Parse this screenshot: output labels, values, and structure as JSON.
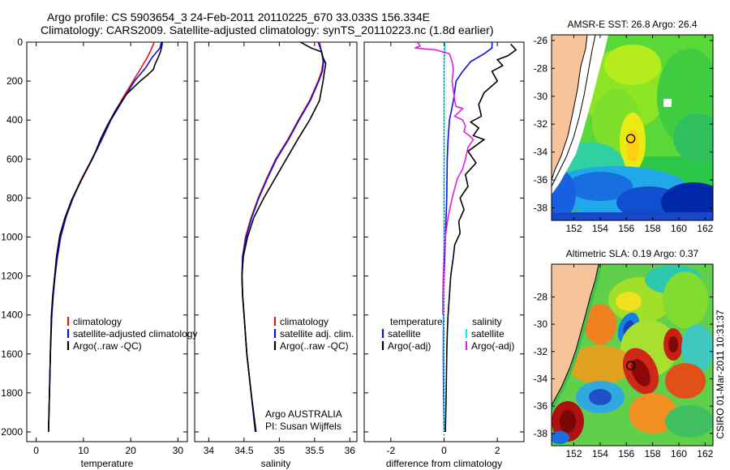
{
  "title": {
    "line1": "Argo profile: CS 5903654_3 24-Feb-2011 20110225_670 33.033S 156.334E",
    "line2": "Climatology: CARS2009. Satellite-adjusted climatology: synTS_20110223.nc (1.8d earlier)"
  },
  "colors": {
    "clim": "#e01818",
    "sat": "#1010d8",
    "argo": "#000000",
    "sal_sat": "#20e0e8",
    "sal_argo": "#e020e0"
  },
  "chart_data": [
    {
      "type": "line",
      "id": "temperature",
      "xlabel": "temperature",
      "xlim": [
        -2,
        32
      ],
      "xticks": [
        0,
        10,
        20,
        30
      ],
      "ylim": [
        0,
        2050
      ],
      "yticks": [
        0,
        200,
        400,
        600,
        800,
        1000,
        1200,
        1400,
        1600,
        1800,
        2000
      ],
      "legend": [
        "climatology",
        "satellite-adjusted climatology",
        "Argo(..raw -QC)"
      ],
      "series": [
        {
          "name": "climatology",
          "color": "clim",
          "points": [
            [
              25,
              0
            ],
            [
              24.3,
              40
            ],
            [
              23.5,
              80
            ],
            [
              22.5,
              120
            ],
            [
              20.5,
              200
            ],
            [
              18,
              300
            ],
            [
              15.7,
              400
            ],
            [
              13.8,
              500
            ],
            [
              11.8,
              600
            ],
            [
              9.6,
              700
            ],
            [
              7.7,
              800
            ],
            [
              6.2,
              900
            ],
            [
              5.1,
              1000
            ],
            [
              4.4,
              1100
            ],
            [
              4,
              1200
            ],
            [
              3.6,
              1300
            ],
            [
              3.3,
              1400
            ],
            [
              3,
              1600
            ],
            [
              2.8,
              1800
            ],
            [
              2.6,
              2000
            ]
          ]
        },
        {
          "name": "satellite-adjusted",
          "color": "sat",
          "points": [
            [
              26.5,
              0
            ],
            [
              26.2,
              30
            ],
            [
              24.5,
              80
            ],
            [
              23.2,
              130
            ],
            [
              20.8,
              200
            ],
            [
              18.3,
              300
            ],
            [
              15.8,
              400
            ],
            [
              13.9,
              500
            ],
            [
              11.9,
              600
            ],
            [
              9.7,
              700
            ],
            [
              7.8,
              800
            ],
            [
              6.3,
              900
            ],
            [
              5.2,
              1000
            ],
            [
              4.5,
              1100
            ],
            [
              4,
              1200
            ],
            [
              3.6,
              1300
            ],
            [
              3.3,
              1400
            ],
            [
              3,
              1600
            ],
            [
              2.8,
              1800
            ],
            [
              2.6,
              2000
            ]
          ]
        },
        {
          "name": "Argo",
          "color": "argo",
          "points": [
            [
              26.7,
              0
            ],
            [
              26.6,
              20
            ],
            [
              26.3,
              50
            ],
            [
              25.8,
              80
            ],
            [
              25.2,
              110
            ],
            [
              24.8,
              140
            ],
            [
              23.5,
              170
            ],
            [
              22,
              200
            ],
            [
              19,
              270
            ],
            [
              16.8,
              350
            ],
            [
              15,
              430
            ],
            [
              13.6,
              500
            ],
            [
              12.6,
              560
            ],
            [
              11,
              640
            ],
            [
              9.3,
              720
            ],
            [
              7.5,
              810
            ],
            [
              6.1,
              900
            ],
            [
              5,
              990
            ],
            [
              4.3,
              1100
            ],
            [
              3.9,
              1200
            ],
            [
              3.5,
              1300
            ],
            [
              3.2,
              1400
            ],
            [
              3,
              1600
            ],
            [
              2.8,
              1800
            ],
            [
              2.6,
              2000
            ]
          ]
        }
      ]
    },
    {
      "type": "line",
      "id": "salinity",
      "xlabel": "salinity",
      "xlim": [
        33.8,
        36.1
      ],
      "xticks": [
        34,
        34.5,
        35,
        35.5,
        36
      ],
      "ylim": [
        0,
        2050
      ],
      "legend": [
        "climatology",
        "satellite adj. clim.",
        "Argo(..raw -QC)"
      ],
      "annotation": [
        "Argo AUSTRALIA",
        "PI: Susan Wijffels"
      ],
      "series": [
        {
          "name": "climatology",
          "color": "clim",
          "points": [
            [
              35.57,
              0
            ],
            [
              35.6,
              50
            ],
            [
              35.62,
              100
            ],
            [
              35.6,
              150
            ],
            [
              35.55,
              200
            ],
            [
              35.43,
              300
            ],
            [
              35.27,
              400
            ],
            [
              35.12,
              500
            ],
            [
              34.95,
              600
            ],
            [
              34.82,
              700
            ],
            [
              34.7,
              800
            ],
            [
              34.6,
              900
            ],
            [
              34.52,
              1000
            ],
            [
              34.48,
              1100
            ],
            [
              34.47,
              1200
            ],
            [
              34.48,
              1300
            ],
            [
              34.5,
              1400
            ],
            [
              34.54,
              1600
            ],
            [
              34.6,
              1800
            ],
            [
              34.66,
              2000
            ]
          ]
        },
        {
          "name": "satellite-adjusted",
          "color": "sat",
          "points": [
            [
              35.55,
              0
            ],
            [
              35.6,
              50
            ],
            [
              35.63,
              100
            ],
            [
              35.61,
              150
            ],
            [
              35.56,
              200
            ],
            [
              35.44,
              300
            ],
            [
              35.28,
              400
            ],
            [
              35.13,
              500
            ],
            [
              34.96,
              600
            ],
            [
              34.83,
              700
            ],
            [
              34.71,
              800
            ],
            [
              34.61,
              900
            ],
            [
              34.53,
              1000
            ],
            [
              34.48,
              1100
            ],
            [
              34.47,
              1200
            ],
            [
              34.48,
              1300
            ],
            [
              34.5,
              1400
            ],
            [
              34.54,
              1600
            ],
            [
              34.6,
              1800
            ],
            [
              34.66,
              2000
            ]
          ]
        },
        {
          "name": "Argo",
          "color": "argo",
          "points": [
            [
              35.3,
              0
            ],
            [
              35.45,
              30
            ],
            [
              35.6,
              50
            ],
            [
              35.62,
              80
            ],
            [
              35.66,
              110
            ],
            [
              35.64,
              150
            ],
            [
              35.62,
              200
            ],
            [
              35.57,
              300
            ],
            [
              35.43,
              400
            ],
            [
              35.26,
              500
            ],
            [
              35.1,
              600
            ],
            [
              34.94,
              700
            ],
            [
              34.78,
              800
            ],
            [
              34.64,
              900
            ],
            [
              34.55,
              1000
            ],
            [
              34.49,
              1100
            ],
            [
              34.47,
              1200
            ],
            [
              34.48,
              1300
            ],
            [
              34.5,
              1400
            ],
            [
              34.54,
              1600
            ],
            [
              34.6,
              1800
            ],
            [
              34.67,
              2000
            ]
          ]
        }
      ]
    },
    {
      "type": "line",
      "id": "difference",
      "xlabel": "difference from climatology",
      "xlim": [
        -3,
        3
      ],
      "xticks": [
        -2,
        0,
        2
      ],
      "ylim": [
        0,
        2050
      ],
      "legend_temperature": {
        "title": "temperature",
        "items": [
          "satellite",
          "Argo(-adj)"
        ]
      },
      "legend_salinity": {
        "title": "salinity",
        "items": [
          "satellite",
          "Argo(-adj)"
        ]
      },
      "series": [
        {
          "name": "temperature satellite",
          "color": "sat",
          "points": [
            [
              1.8,
              0
            ],
            [
              1.8,
              30
            ],
            [
              1.5,
              60
            ],
            [
              1,
              100
            ],
            [
              0.7,
              150
            ],
            [
              0.45,
              200
            ],
            [
              0.35,
              300
            ],
            [
              0.2,
              400
            ],
            [
              0.15,
              500
            ],
            [
              0.12,
              600
            ],
            [
              0.1,
              800
            ],
            [
              0.05,
              1000
            ],
            [
              0,
              1200
            ],
            [
              -0.02,
              1400
            ],
            [
              -0.03,
              1600
            ],
            [
              -0.02,
              1800
            ],
            [
              0,
              2000
            ]
          ]
        },
        {
          "name": "temperature Argo",
          "color": "argo",
          "points": [
            [
              2.5,
              10
            ],
            [
              2.7,
              40
            ],
            [
              2.4,
              70
            ],
            [
              2,
              90
            ],
            [
              2.2,
              120
            ],
            [
              1.8,
              150
            ],
            [
              2,
              200
            ],
            [
              1.5,
              260
            ],
            [
              1.3,
              320
            ],
            [
              1.4,
              380
            ],
            [
              1,
              410
            ],
            [
              1.3,
              440
            ],
            [
              1.1,
              480
            ],
            [
              1.5,
              500
            ],
            [
              0.9,
              560
            ],
            [
              1.2,
              620
            ],
            [
              0.8,
              680
            ],
            [
              0.9,
              740
            ],
            [
              0.6,
              800
            ],
            [
              0.75,
              860
            ],
            [
              0.55,
              920
            ],
            [
              0.6,
              980
            ],
            [
              0.4,
              1040
            ],
            [
              0.35,
              1100
            ],
            [
              0.25,
              1200
            ],
            [
              0.2,
              1300
            ],
            [
              0.15,
              1400
            ],
            [
              0.12,
              1500
            ],
            [
              0.1,
              1600
            ],
            [
              0.08,
              1800
            ],
            [
              0.05,
              2000
            ]
          ]
        },
        {
          "name": "salinity satellite",
          "color": "sal_sat",
          "points": [
            [
              0.05,
              0
            ],
            [
              0.02,
              30
            ],
            [
              0.02,
              60
            ],
            [
              0,
              100
            ],
            [
              0,
              200
            ],
            [
              0,
              400
            ],
            [
              0,
              600
            ],
            [
              0,
              800
            ],
            [
              0,
              1000
            ],
            [
              -0.01,
              1200
            ],
            [
              -0.01,
              1400
            ],
            [
              -0.01,
              1600
            ],
            [
              0,
              1800
            ],
            [
              0,
              2000
            ]
          ]
        },
        {
          "name": "salinity Argo",
          "color": "sal_argo",
          "points": [
            [
              -1,
              0
            ],
            [
              -0.9,
              20
            ],
            [
              -1.1,
              30
            ],
            [
              -0.3,
              40
            ],
            [
              0.2,
              60
            ],
            [
              0.3,
              100
            ],
            [
              0.35,
              140
            ],
            [
              0.3,
              200
            ],
            [
              0.4,
              300
            ],
            [
              0.45,
              330
            ],
            [
              0.7,
              340
            ],
            [
              0.55,
              360
            ],
            [
              0.4,
              380
            ],
            [
              0.7,
              400
            ],
            [
              0.8,
              430
            ],
            [
              0.75,
              460
            ],
            [
              0.95,
              480
            ],
            [
              1.1,
              500
            ],
            [
              0.9,
              540
            ],
            [
              0.8,
              600
            ],
            [
              0.7,
              650
            ],
            [
              0.5,
              700
            ],
            [
              0.3,
              800
            ],
            [
              0.15,
              900
            ],
            [
              0.05,
              1000
            ],
            [
              0,
              1100
            ],
            [
              -0.03,
              1200
            ],
            [
              -0.05,
              1300
            ],
            [
              -0.05,
              1400
            ]
          ]
        }
      ]
    },
    {
      "type": "heatmap",
      "id": "sst-map",
      "title": "AMSR-E SST: 26.8 Argo: 26.4",
      "xlim": [
        150.3,
        162.6
      ],
      "ylim": [
        -38.9,
        -25.6
      ],
      "xticks": [
        152,
        154,
        156,
        158,
        160,
        162
      ],
      "yticks": [
        -26,
        -28,
        -30,
        -32,
        -34,
        -36,
        -38
      ],
      "float_position": [
        156.334,
        -33.033
      ]
    },
    {
      "type": "heatmap",
      "id": "sla-map",
      "title": "Altimetric SLA: 0.19 Argo: 0.37",
      "xlim": [
        150.3,
        162.6
      ],
      "ylim": [
        -38.9,
        -25.6
      ],
      "xticks": [
        152,
        154,
        156,
        158,
        160,
        162
      ],
      "yticks": [
        -28,
        -30,
        -32,
        -34,
        -36,
        -38
      ],
      "float_position": [
        156.334,
        -33.033
      ]
    }
  ],
  "side_text": "CSIRO 01-Mar-2011 10:31:37"
}
